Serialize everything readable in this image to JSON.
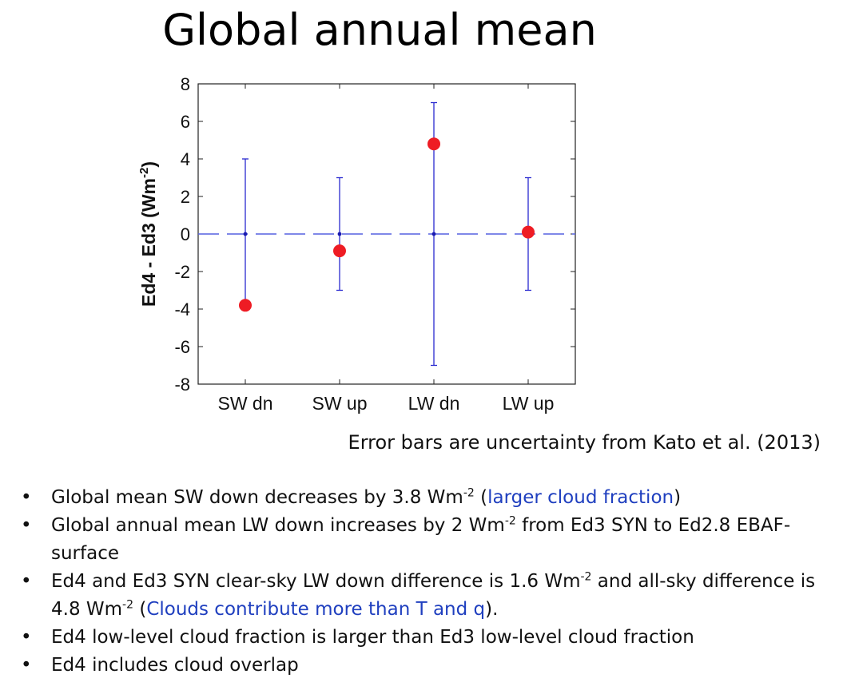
{
  "title": "Global annual mean",
  "caption": "Error bars are uncertainty from Kato et al. (2013)",
  "chart_data": {
    "type": "scatter",
    "ylabel": "Ed4 - Ed3 (Wm",
    "ylabel_sup": "-2",
    "ylabel_close": ")",
    "ylim": [
      -8,
      8
    ],
    "yticks": [
      8,
      6,
      4,
      2,
      0,
      -2,
      -4,
      -6,
      -8
    ],
    "categories": [
      "SW dn",
      "SW up",
      "LW dn",
      "LW up"
    ],
    "values": [
      -3.8,
      -0.9,
      4.8,
      0.1
    ],
    "error_high": [
      4,
      3,
      7,
      3
    ],
    "error_low": [
      -4,
      -3,
      -7,
      -3
    ],
    "reference_line": 0,
    "marker_color": "#ee1c24",
    "errorbar_color": "#2a2ad0"
  },
  "bullets": [
    {
      "pre": "Global mean SW down decreases by 3.8 Wm",
      "sup": "-2",
      "mid": " (",
      "blue": "larger cloud fraction",
      "post": ")"
    },
    {
      "pre": "Global annual mean LW down increases by 2 Wm",
      "sup": "-2",
      "post": " from Ed3 SYN to Ed2.8 EBAF-surface"
    },
    {
      "pre": "Ed4 and Ed3 SYN clear-sky LW down difference is 1.6 Wm",
      "sup": "-2",
      "mid": " and all-sky difference is 4.8 Wm",
      "sup2": "-2",
      "mid2": " (",
      "blue": "Clouds contribute more than T and q",
      "post": ")."
    },
    {
      "pre": "Ed4 low-level cloud fraction is larger than Ed3 low-level cloud fraction"
    },
    {
      "pre": "Ed4 includes cloud overlap"
    }
  ]
}
